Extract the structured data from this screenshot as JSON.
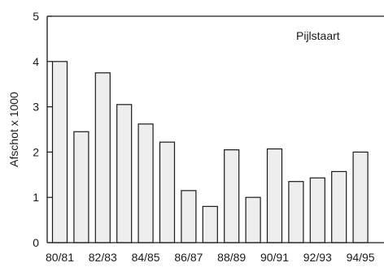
{
  "chart_data": {
    "type": "bar",
    "title": "",
    "annotation": "Pijlstaart",
    "xlabel": "",
    "ylabel": "Afschot x 1000",
    "ylim": [
      0,
      5
    ],
    "yticks": [
      0,
      1,
      2,
      3,
      4,
      5
    ],
    "grid": false,
    "legend": "none",
    "categories": [
      "80/81",
      "81/82",
      "82/83",
      "83/84",
      "84/85",
      "85/86",
      "86/87",
      "87/88",
      "88/89",
      "89/90",
      "90/91",
      "91/92",
      "92/93",
      "93/94",
      "94/95"
    ],
    "shown_category_labels": [
      "80/81",
      "82/83",
      "84/85",
      "86/87",
      "88/89",
      "90/91",
      "92/93",
      "94/95"
    ],
    "values": [
      4.0,
      2.45,
      3.75,
      3.05,
      2.62,
      2.22,
      1.15,
      0.8,
      2.05,
      1.0,
      2.07,
      1.35,
      1.43,
      1.57,
      2.0
    ],
    "colors": {
      "bar_fill": "#eeeeee",
      "bar_stroke": "#1a1a1a",
      "axis": "#1a1a1a"
    }
  }
}
